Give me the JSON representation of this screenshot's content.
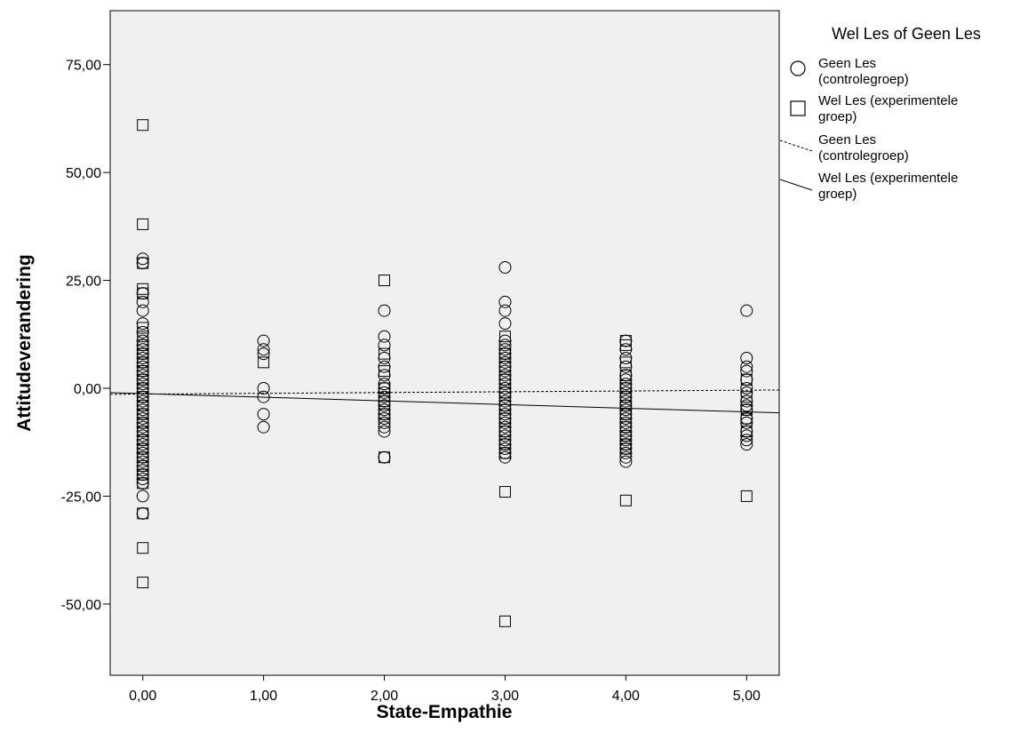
{
  "chart_data": {
    "type": "scatter",
    "xlabel": "State-Empathie",
    "ylabel": "Attitudeverandering",
    "xlim": [
      -0.27,
      5.27
    ],
    "ylim": [
      -66.5,
      87.5
    ],
    "x_ticks": [
      {
        "value": 0,
        "label": "0,00"
      },
      {
        "value": 1,
        "label": "1,00"
      },
      {
        "value": 2,
        "label": "2,00"
      },
      {
        "value": 3,
        "label": "3,00"
      },
      {
        "value": 4,
        "label": "4,00"
      },
      {
        "value": 5,
        "label": "5,00"
      }
    ],
    "y_ticks": [
      {
        "value": 75,
        "label": "75,00"
      },
      {
        "value": 50,
        "label": "50,00"
      },
      {
        "value": 25,
        "label": "25,00"
      },
      {
        "value": 0,
        "label": "0,00"
      },
      {
        "value": -25,
        "label": "-25,00"
      },
      {
        "value": -50,
        "label": "-50,00"
      }
    ],
    "grid": false,
    "background": "#f0f0f0",
    "legend": {
      "title": "Wel Les of Geen Les",
      "position": "right",
      "entries": [
        {
          "kind": "circle",
          "lines": [
            "Geen Les",
            "(controlegroep)"
          ]
        },
        {
          "kind": "square",
          "lines": [
            "Wel Les (experimentele",
            "groep)"
          ]
        },
        {
          "kind": "dashed-line",
          "lines": [
            "Geen Les",
            "(controlegroep)"
          ]
        },
        {
          "kind": "solid-line",
          "lines": [
            "Wel Les (experimentele",
            "groep)"
          ]
        }
      ]
    },
    "series": [
      {
        "name": "Geen Les (controlegroep)",
        "marker": "circle",
        "points": [
          [
            0,
            30
          ],
          [
            0,
            29
          ],
          [
            0,
            22
          ],
          [
            0,
            20
          ],
          [
            0,
            18
          ],
          [
            0,
            15
          ],
          [
            0,
            13
          ],
          [
            0,
            11
          ],
          [
            0,
            10
          ],
          [
            0,
            9
          ],
          [
            0,
            8
          ],
          [
            0,
            7
          ],
          [
            0,
            6
          ],
          [
            0,
            5
          ],
          [
            0,
            4
          ],
          [
            0,
            3
          ],
          [
            0,
            2
          ],
          [
            0,
            1
          ],
          [
            0,
            0
          ],
          [
            0,
            -1
          ],
          [
            0,
            -2
          ],
          [
            0,
            -3
          ],
          [
            0,
            -4
          ],
          [
            0,
            -5
          ],
          [
            0,
            -6
          ],
          [
            0,
            -7
          ],
          [
            0,
            -8
          ],
          [
            0,
            -9
          ],
          [
            0,
            -10
          ],
          [
            0,
            -11
          ],
          [
            0,
            -12
          ],
          [
            0,
            -13
          ],
          [
            0,
            -14
          ],
          [
            0,
            -15
          ],
          [
            0,
            -16
          ],
          [
            0,
            -17
          ],
          [
            0,
            -18
          ],
          [
            0,
            -19
          ],
          [
            0,
            -20
          ],
          [
            0,
            -21
          ],
          [
            0,
            -22
          ],
          [
            0,
            -25
          ],
          [
            0,
            -29
          ],
          [
            1,
            11
          ],
          [
            1,
            9
          ],
          [
            1,
            8
          ],
          [
            1,
            0
          ],
          [
            1,
            -2
          ],
          [
            1,
            -6
          ],
          [
            1,
            -9
          ],
          [
            2,
            18
          ],
          [
            2,
            12
          ],
          [
            2,
            10
          ],
          [
            2,
            7
          ],
          [
            2,
            5
          ],
          [
            2,
            3
          ],
          [
            2,
            1
          ],
          [
            2,
            0
          ],
          [
            2,
            -1
          ],
          [
            2,
            -2
          ],
          [
            2,
            -3
          ],
          [
            2,
            -4
          ],
          [
            2,
            -5
          ],
          [
            2,
            -6
          ],
          [
            2,
            -7
          ],
          [
            2,
            -8
          ],
          [
            2,
            -9
          ],
          [
            2,
            -10
          ],
          [
            2,
            -16
          ],
          [
            3,
            28
          ],
          [
            3,
            20
          ],
          [
            3,
            18
          ],
          [
            3,
            15
          ],
          [
            3,
            11
          ],
          [
            3,
            10
          ],
          [
            3,
            9
          ],
          [
            3,
            8
          ],
          [
            3,
            7
          ],
          [
            3,
            6
          ],
          [
            3,
            5
          ],
          [
            3,
            4
          ],
          [
            3,
            3
          ],
          [
            3,
            2
          ],
          [
            3,
            1
          ],
          [
            3,
            0
          ],
          [
            3,
            -1
          ],
          [
            3,
            -2
          ],
          [
            3,
            -3
          ],
          [
            3,
            -4
          ],
          [
            3,
            -5
          ],
          [
            3,
            -6
          ],
          [
            3,
            -7
          ],
          [
            3,
            -8
          ],
          [
            3,
            -9
          ],
          [
            3,
            -10
          ],
          [
            3,
            -11
          ],
          [
            3,
            -12
          ],
          [
            3,
            -13
          ],
          [
            3,
            -14
          ],
          [
            3,
            -15
          ],
          [
            3,
            -16
          ],
          [
            4,
            11
          ],
          [
            4,
            9
          ],
          [
            4,
            7
          ],
          [
            4,
            5
          ],
          [
            4,
            3
          ],
          [
            4,
            2
          ],
          [
            4,
            1
          ],
          [
            4,
            0
          ],
          [
            4,
            -1
          ],
          [
            4,
            -2
          ],
          [
            4,
            -3
          ],
          [
            4,
            -4
          ],
          [
            4,
            -5
          ],
          [
            4,
            -6
          ],
          [
            4,
            -7
          ],
          [
            4,
            -8
          ],
          [
            4,
            -9
          ],
          [
            4,
            -10
          ],
          [
            4,
            -11
          ],
          [
            4,
            -12
          ],
          [
            4,
            -13
          ],
          [
            4,
            -14
          ],
          [
            4,
            -15
          ],
          [
            4,
            -16
          ],
          [
            4,
            -17
          ],
          [
            5,
            18
          ],
          [
            5,
            7
          ],
          [
            5,
            5
          ],
          [
            5,
            4
          ],
          [
            5,
            2
          ],
          [
            5,
            0
          ],
          [
            5,
            -1
          ],
          [
            5,
            -3
          ],
          [
            5,
            -4
          ],
          [
            5,
            -5
          ],
          [
            5,
            -7
          ],
          [
            5,
            -8
          ],
          [
            5,
            -10
          ],
          [
            5,
            -11
          ],
          [
            5,
            -12
          ],
          [
            5,
            -13
          ]
        ]
      },
      {
        "name": "Wel Les (experimentele groep)",
        "marker": "square",
        "points": [
          [
            0,
            61
          ],
          [
            0,
            38
          ],
          [
            0,
            29
          ],
          [
            0,
            23
          ],
          [
            0,
            22
          ],
          [
            0,
            14
          ],
          [
            0,
            12
          ],
          [
            0,
            10
          ],
          [
            0,
            8
          ],
          [
            0,
            6
          ],
          [
            0,
            4
          ],
          [
            0,
            2
          ],
          [
            0,
            0
          ],
          [
            0,
            -2
          ],
          [
            0,
            -4
          ],
          [
            0,
            -6
          ],
          [
            0,
            -8
          ],
          [
            0,
            -10
          ],
          [
            0,
            -12
          ],
          [
            0,
            -14
          ],
          [
            0,
            -16
          ],
          [
            0,
            -18
          ],
          [
            0,
            -20
          ],
          [
            0,
            -22
          ],
          [
            0,
            -29
          ],
          [
            0,
            -37
          ],
          [
            0,
            -45
          ],
          [
            1,
            6
          ],
          [
            2,
            25
          ],
          [
            2,
            8
          ],
          [
            2,
            4
          ],
          [
            2,
            0
          ],
          [
            2,
            -3
          ],
          [
            2,
            -6
          ],
          [
            2,
            -16
          ],
          [
            3,
            12
          ],
          [
            3,
            8
          ],
          [
            3,
            5
          ],
          [
            3,
            2
          ],
          [
            3,
            -1
          ],
          [
            3,
            -4
          ],
          [
            3,
            -7
          ],
          [
            3,
            -10
          ],
          [
            3,
            -13
          ],
          [
            3,
            -15
          ],
          [
            3,
            -24
          ],
          [
            3,
            -54
          ],
          [
            4,
            11
          ],
          [
            4,
            10
          ],
          [
            4,
            6
          ],
          [
            4,
            3
          ],
          [
            4,
            0
          ],
          [
            4,
            -2
          ],
          [
            4,
            -4
          ],
          [
            4,
            -6
          ],
          [
            4,
            -9
          ],
          [
            4,
            -11
          ],
          [
            4,
            -13
          ],
          [
            4,
            -14
          ],
          [
            4,
            -26
          ],
          [
            5,
            2
          ],
          [
            5,
            -2
          ],
          [
            5,
            -5
          ],
          [
            5,
            -7
          ],
          [
            5,
            -10
          ],
          [
            5,
            -25
          ]
        ]
      }
    ],
    "fit_lines": [
      {
        "name": "Geen Les (controlegroep)",
        "style": "dashed",
        "x": [
          -0.27,
          5.27
        ],
        "y": [
          -1.4,
          -0.4
        ]
      },
      {
        "name": "Wel Les (experimentele groep)",
        "style": "solid",
        "x": [
          -0.27,
          5.27
        ],
        "y": [
          -1.0,
          -5.7
        ]
      }
    ]
  }
}
